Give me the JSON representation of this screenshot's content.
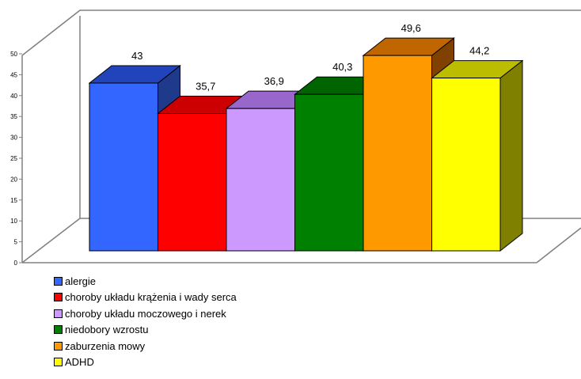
{
  "chart_data": {
    "type": "bar",
    "categories": [
      "alergie",
      "choroby układu krążenia i wady serca",
      "choroby układu moczowego i nerek",
      "niedobory wzrostu",
      "zaburzenia mowy",
      "ADHD"
    ],
    "values": [
      43,
      35.7,
      36.9,
      40.3,
      49.6,
      44.2
    ],
    "value_labels": [
      "43",
      "35,7",
      "36,9",
      "40,3",
      "49,6",
      "44,2"
    ],
    "y_ticks": [
      "0",
      "5",
      "10",
      "15",
      "20",
      "25",
      "30",
      "35",
      "40",
      "45",
      "50"
    ],
    "ylim": [
      0,
      50
    ],
    "three_d": true,
    "legend_position": "bottom-left",
    "colors": [
      {
        "front": "#3366ff",
        "top": "#2244bb",
        "side": "#1f3a8a"
      },
      {
        "front": "#ff0000",
        "top": "#cc0000",
        "side": "#990000"
      },
      {
        "front": "#cc99ff",
        "top": "#9966cc",
        "side": "#7a52a8"
      },
      {
        "front": "#008000",
        "top": "#006400",
        "side": "#004d00"
      },
      {
        "front": "#ff9900",
        "top": "#c06600",
        "side": "#804000"
      },
      {
        "front": "#ffff00",
        "top": "#bdbd00",
        "side": "#808000"
      }
    ]
  }
}
